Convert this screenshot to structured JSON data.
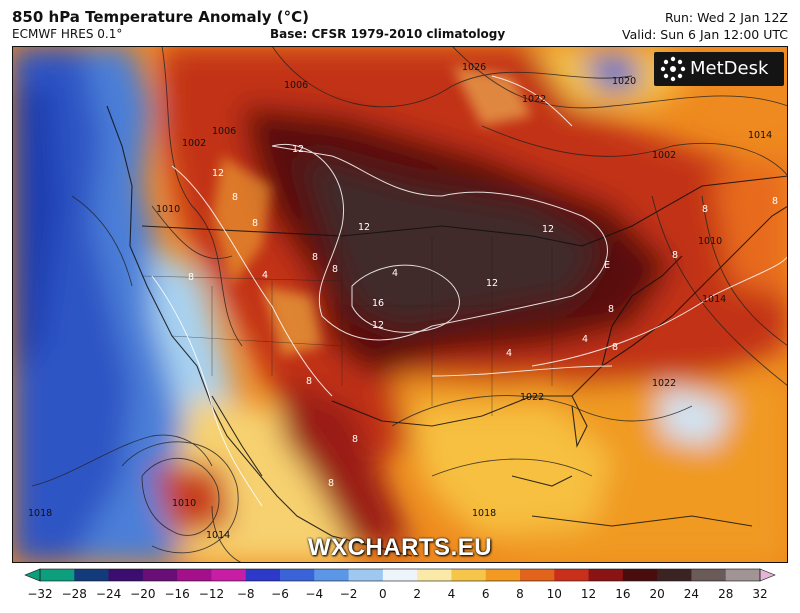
{
  "header": {
    "title": "850 hPa Temperature Anomaly (°C)",
    "model": "ECMWF HRES 0.1°",
    "base": "Base: CFSR 1979-2010 climatology",
    "run": "Run: Wed 2 Jan 12Z",
    "valid": "Valid: Sun 6 Jan 12:00 UTC"
  },
  "logo": {
    "text": "MetDesk"
  },
  "watermark": "WXCHARTS.EU",
  "colorbar": {
    "ticks": [
      "−32",
      "−28",
      "−24",
      "−20",
      "−16",
      "−12",
      "−8",
      "−6",
      "−4",
      "−2",
      "0",
      "2",
      "4",
      "6",
      "8",
      "10",
      "12",
      "16",
      "20",
      "24",
      "28",
      "32"
    ],
    "colors": [
      "#0d9e7e",
      "#133a7a",
      "#3b0d6e",
      "#6a0e77",
      "#a3108a",
      "#c81ea6",
      "#2c39c9",
      "#3a63d8",
      "#5c96e6",
      "#9fc8f0",
      "#eef4fa",
      "#fbe9a8",
      "#f5c64a",
      "#f39a22",
      "#e2641c",
      "#c9301c",
      "#8a1313",
      "#4a0d0d",
      "#3b2323",
      "#6a5a5a",
      "#a09494",
      "#e6b4d6"
    ]
  },
  "contours": {
    "pressure_labels": [
      "1026",
      "1022",
      "1020",
      "1010",
      "1006",
      "1002",
      "1002",
      "1014",
      "1010",
      "1018",
      "1014",
      "1010",
      "1022",
      "1018",
      "1006",
      "1014",
      "1022"
    ],
    "anomaly_labels": [
      "12",
      "12",
      "12",
      "12",
      "16",
      "12",
      "12",
      "8",
      "8",
      "8",
      "8",
      "8",
      "8",
      "8",
      "8",
      "8",
      "4",
      "4",
      "4",
      "4",
      "8",
      "8",
      "8",
      "8",
      "E"
    ]
  }
}
